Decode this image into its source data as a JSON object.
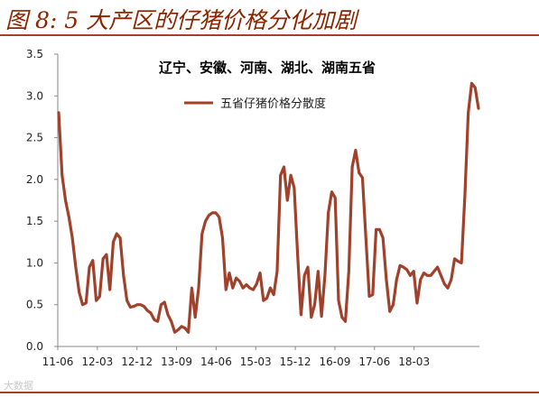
{
  "figure": {
    "title": "图 8: 5 大产区的仔猪价格分化加剧",
    "watermark": "大数据"
  },
  "chart_data": {
    "type": "line",
    "title": "辽宁、安徽、河南、湖北、湖南五省",
    "xlabel": "",
    "ylabel": "",
    "ylim": [
      0,
      3.5
    ],
    "yticks": [
      "0.0",
      "0.5",
      "1.0",
      "1.5",
      "2.0",
      "2.5",
      "3.0",
      "3.5"
    ],
    "xticks": [
      "11-06",
      "12-03",
      "12-12",
      "13-09",
      "14-06",
      "15-03",
      "15-12",
      "16-09",
      "17-06",
      "18-03"
    ],
    "grid": false,
    "legend": "top-center",
    "line_color": "#a0412b",
    "series": [
      {
        "name": "五省仔猪价格分散度",
        "values": [
          2.8,
          2.05,
          1.75,
          1.55,
          1.3,
          0.95,
          0.65,
          0.5,
          0.52,
          0.95,
          1.03,
          0.55,
          0.6,
          1.05,
          1.1,
          0.68,
          1.25,
          1.35,
          1.3,
          0.85,
          0.55,
          0.47,
          0.48,
          0.5,
          0.5,
          0.48,
          0.43,
          0.4,
          0.32,
          0.3,
          0.5,
          0.53,
          0.38,
          0.3,
          0.17,
          0.2,
          0.24,
          0.22,
          0.17,
          0.7,
          0.35,
          0.7,
          1.35,
          1.5,
          1.57,
          1.6,
          1.6,
          1.55,
          1.3,
          0.68,
          0.88,
          0.7,
          0.82,
          0.78,
          0.7,
          0.74,
          0.7,
          0.68,
          0.75,
          0.88,
          0.55,
          0.58,
          0.7,
          0.62,
          0.9,
          2.05,
          2.15,
          1.75,
          2.05,
          1.9,
          1.1,
          0.38,
          0.85,
          0.95,
          0.35,
          0.5,
          0.9,
          0.36,
          0.85,
          1.6,
          1.85,
          1.78,
          0.55,
          0.35,
          0.3,
          0.9,
          2.15,
          2.35,
          2.08,
          2.02,
          1.3,
          0.6,
          0.62,
          1.4,
          1.4,
          1.3,
          0.8,
          0.42,
          0.5,
          0.8,
          0.97,
          0.95,
          0.92,
          0.85,
          0.9,
          0.52,
          0.8,
          0.88,
          0.85,
          0.85,
          0.9,
          0.95,
          0.85,
          0.75,
          0.7,
          0.8,
          1.05,
          1.02,
          1.0,
          1.8,
          2.8,
          3.15,
          3.1,
          2.85
        ]
      }
    ]
  }
}
